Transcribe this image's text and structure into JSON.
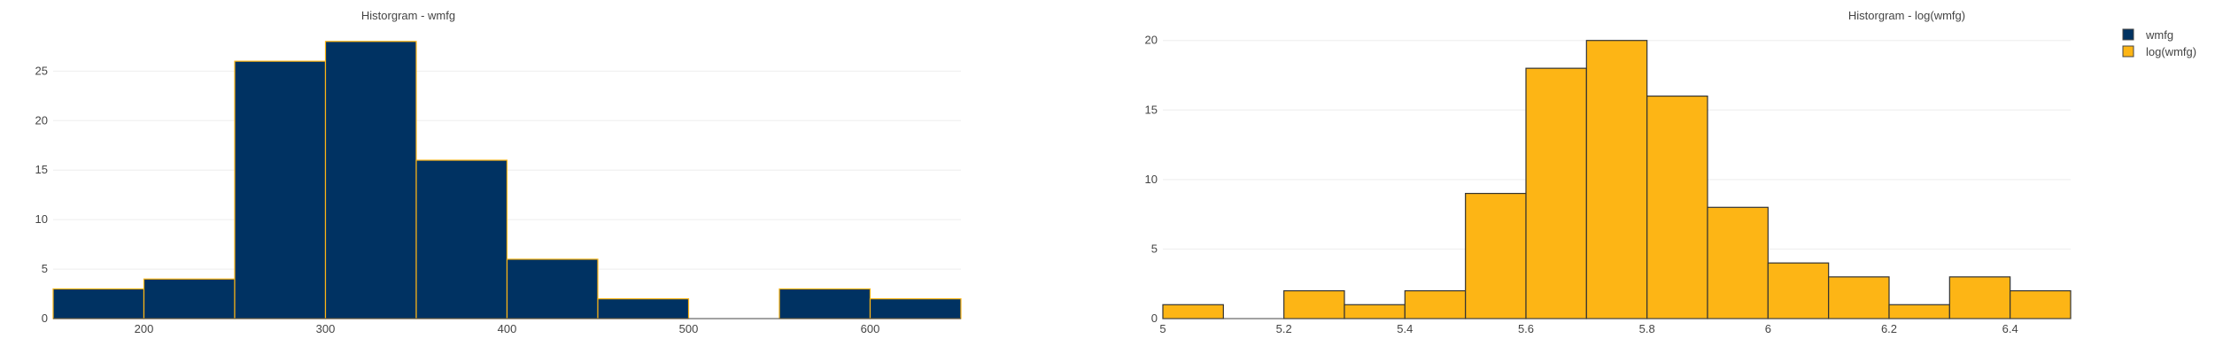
{
  "chart_data": [
    {
      "type": "histogram",
      "title": "Historgram - wmfg",
      "series_name": "wmfg",
      "color": "#003262",
      "edge_color": "#FDB515",
      "bins": [
        {
          "x0": 150,
          "x1": 200,
          "count": 3
        },
        {
          "x0": 200,
          "x1": 250,
          "count": 4
        },
        {
          "x0": 250,
          "x1": 300,
          "count": 26
        },
        {
          "x0": 300,
          "x1": 350,
          "count": 28
        },
        {
          "x0": 350,
          "x1": 400,
          "count": 16
        },
        {
          "x0": 400,
          "x1": 450,
          "count": 6
        },
        {
          "x0": 450,
          "x1": 500,
          "count": 2
        },
        {
          "x0": 500,
          "x1": 550,
          "count": 0
        },
        {
          "x0": 550,
          "x1": 600,
          "count": 3
        },
        {
          "x0": 600,
          "x1": 650,
          "count": 2
        }
      ],
      "xlim": [
        150,
        650
      ],
      "ylim": [
        0,
        29.5
      ],
      "x_ticks": [
        "200",
        "300",
        "400",
        "500",
        "600"
      ],
      "y_ticks": [
        "0",
        "5",
        "10",
        "15",
        "20",
        "25"
      ],
      "grid": true
    },
    {
      "type": "histogram",
      "title": "Historgram - log(wmfg)",
      "series_name": "log(wmfg)",
      "color": "#FDB515",
      "edge_color": "#333333",
      "bins": [
        {
          "x0": 5.0,
          "x1": 5.1,
          "count": 1
        },
        {
          "x0": 5.1,
          "x1": 5.2,
          "count": 0
        },
        {
          "x0": 5.2,
          "x1": 5.3,
          "count": 2
        },
        {
          "x0": 5.3,
          "x1": 5.4,
          "count": 1
        },
        {
          "x0": 5.4,
          "x1": 5.5,
          "count": 2
        },
        {
          "x0": 5.5,
          "x1": 5.6,
          "count": 9
        },
        {
          "x0": 5.6,
          "x1": 5.7,
          "count": 18
        },
        {
          "x0": 5.7,
          "x1": 5.8,
          "count": 20
        },
        {
          "x0": 5.8,
          "x1": 5.9,
          "count": 16
        },
        {
          "x0": 5.9,
          "x1": 6.0,
          "count": 8
        },
        {
          "x0": 6.0,
          "x1": 6.1,
          "count": 4
        },
        {
          "x0": 6.1,
          "x1": 6.2,
          "count": 3
        },
        {
          "x0": 6.2,
          "x1": 6.3,
          "count": 1
        },
        {
          "x0": 6.3,
          "x1": 6.4,
          "count": 3
        },
        {
          "x0": 6.4,
          "x1": 6.5,
          "count": 2
        }
      ],
      "xlim": [
        5.0,
        6.5
      ],
      "ylim": [
        0,
        21
      ],
      "x_ticks": [
        "5",
        "5.2",
        "5.4",
        "5.6",
        "5.8",
        "6",
        "6.2",
        "6.4"
      ],
      "y_ticks": [
        "0",
        "5",
        "10",
        "15",
        "20"
      ],
      "grid": true
    }
  ],
  "legend": {
    "placement": "top-right",
    "items": [
      {
        "label": "wmfg",
        "color": "#003262"
      },
      {
        "label": "log(wmfg)",
        "color": "#FDB515"
      }
    ]
  }
}
